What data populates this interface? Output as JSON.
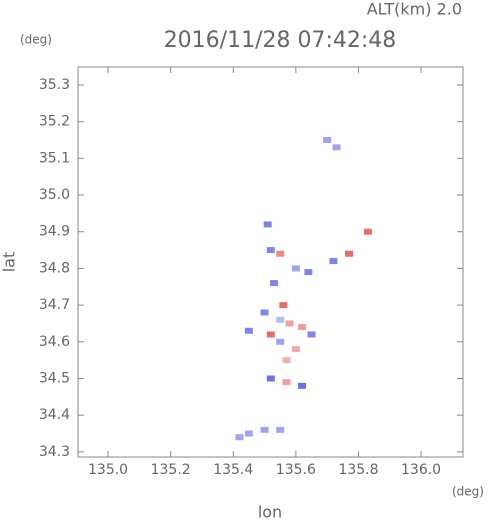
{
  "chart_data": {
    "type": "scatter",
    "title": "2016/11/28 07:42:48",
    "annotation": "ALT(km) 2.0",
    "y_unit": "(deg)",
    "x_unit": "(deg)",
    "x_label": "lon",
    "y_label": "lat",
    "xlim": [
      134.904,
      136.134
    ],
    "ylim": [
      34.286,
      35.349
    ],
    "xticks": [
      {
        "value": 135.0,
        "label": "135.0"
      },
      135.2,
      135.4,
      135.6,
      135.8,
      {
        "value": 136.0,
        "label": "136.0"
      }
    ],
    "yticks": [
      34.3,
      34.4,
      34.5,
      34.6,
      34.7,
      34.8,
      34.9,
      {
        "value": 35.0,
        "label": "35.0"
      },
      35.1,
      35.2,
      35.3
    ],
    "x": [
      135.7,
      135.73,
      135.51,
      135.83,
      135.52,
      135.55,
      135.6,
      135.64,
      135.72,
      135.77,
      135.53,
      135.56,
      135.5,
      135.55,
      135.58,
      135.62,
      135.45,
      135.52,
      135.55,
      135.6,
      135.65,
      135.57,
      135.52,
      135.57,
      135.62,
      135.45,
      135.5,
      135.55,
      135.42
    ],
    "values": [
      35.15,
      35.13,
      34.92,
      34.9,
      34.85,
      34.84,
      34.8,
      34.79,
      34.82,
      34.84,
      34.76,
      34.7,
      34.68,
      34.66,
      34.65,
      34.64,
      34.63,
      34.62,
      34.6,
      34.58,
      34.62,
      34.55,
      34.5,
      34.49,
      34.48,
      34.35,
      34.36,
      34.36,
      34.34
    ],
    "point_colors": [
      "#9fa3f0",
      "#9fa3f0",
      "#7f86e8",
      "#e86a6a",
      "#7f86e8",
      "#e88a8a",
      "#9fa3f0",
      "#7f86e8",
      "#7f86e8",
      "#e86a6a",
      "#7f86e8",
      "#e86a6a",
      "#7f86e8",
      "#b8bcf2",
      "#f0a0a0",
      "#f09a9a",
      "#7f86e8",
      "#e86a6a",
      "#9fa3f0",
      "#f0a8a8",
      "#7f86e8",
      "#f0b0b0",
      "#6b73e6",
      "#f0a0a0",
      "#6b73e6",
      "#9fa3f0",
      "#9fa3f0",
      "#9fa3f0",
      "#9fa3f0"
    ]
  }
}
